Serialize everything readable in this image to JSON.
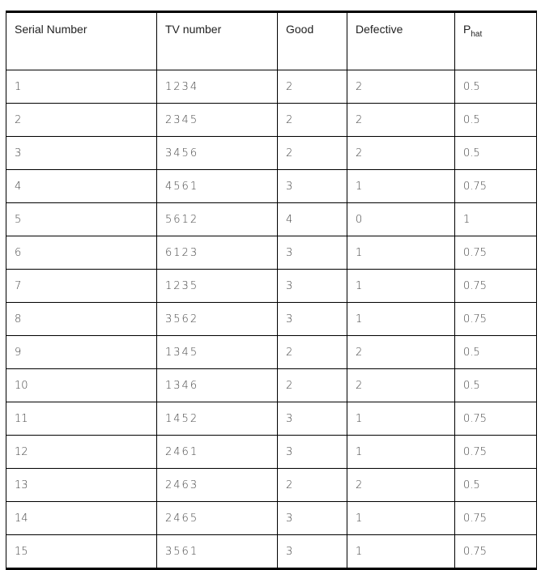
{
  "headers": {
    "serial": "Serial Number",
    "tv": "TV number",
    "good": "Good",
    "defective": "Defective",
    "phat_base": "P",
    "phat_sub": "hat"
  },
  "rows": [
    [
      "1",
      "1234",
      "2",
      "2",
      "0.5"
    ],
    [
      "2",
      "2345",
      "2",
      "2",
      "0.5"
    ],
    [
      "3",
      "3456",
      "2",
      "2",
      "0.5"
    ],
    [
      "4",
      "4561",
      "3",
      "1",
      "0.75"
    ],
    [
      "5",
      "5612",
      "4",
      "0",
      "1"
    ],
    [
      "6",
      "6123",
      "3",
      "1",
      "0.75"
    ],
    [
      "7",
      "1235",
      "3",
      "1",
      "0.75"
    ],
    [
      "8",
      "3562",
      "3",
      "1",
      "0.75"
    ],
    [
      "9",
      "1345",
      "2",
      "2",
      "0.5"
    ],
    [
      "10",
      "1346",
      "2",
      "2",
      "0.5"
    ],
    [
      "11",
      "1452",
      "3",
      "1",
      "0.75"
    ],
    [
      "12",
      "2461",
      "3",
      "1",
      "0.75"
    ],
    [
      "13",
      "2463",
      "2",
      "2",
      "0.5"
    ],
    [
      "14",
      "2465",
      "3",
      "1",
      "0.75"
    ],
    [
      "15",
      "3561",
      "3",
      "1",
      "0.75"
    ]
  ]
}
